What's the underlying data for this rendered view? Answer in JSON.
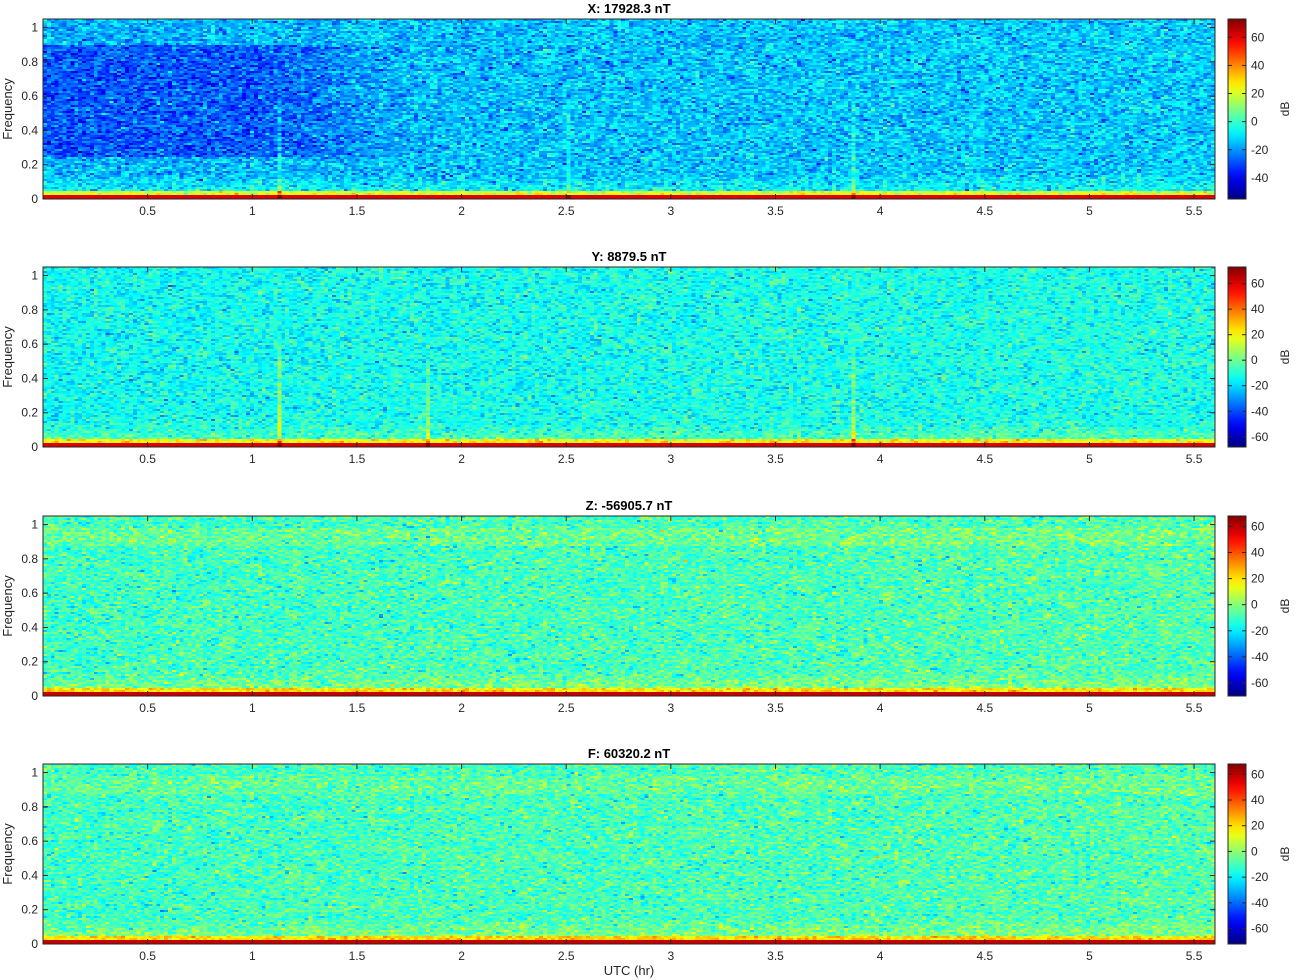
{
  "chart_data": [
    {
      "type": "heatmap",
      "title": "X: 17928.3 nT",
      "ylabel": "Frequency",
      "xlabel": "",
      "colorbar_label": "dB",
      "xlim": [
        0,
        5.6
      ],
      "ylim": [
        0,
        1.05
      ],
      "xticks": [
        "0.5",
        "1",
        "1.5",
        "2",
        "2.5",
        "3",
        "3.5",
        "4",
        "4.5",
        "5",
        "5.5"
      ],
      "xtick_values": [
        0.5,
        1,
        1.5,
        2,
        2.5,
        3,
        3.5,
        4,
        4.5,
        5,
        5.5
      ],
      "yticks": [
        "0",
        "0.2",
        "0.4",
        "0.6",
        "0.8",
        "1"
      ],
      "ytick_values": [
        0,
        0.2,
        0.4,
        0.6,
        0.8,
        1
      ],
      "clim": [
        -55,
        73
      ],
      "cticks": [
        "-40",
        "-20",
        "0",
        "20",
        "40",
        "60"
      ],
      "ctick_values": [
        -40,
        -20,
        0,
        20,
        40,
        60
      ],
      "colormap": "jet",
      "base_level_db": -16,
      "noise_db": 7,
      "low_frequency_band_db": 60,
      "dark_region": {
        "x_range": [
          0,
          1.8
        ],
        "f_range": [
          0.25,
          0.9
        ],
        "delta_db": -12
      },
      "vertical_streaks": [
        {
          "x": 1.12,
          "delta_db": 14
        },
        {
          "x": 2.5,
          "delta_db": 5
        },
        {
          "x": 3.87,
          "delta_db": 8
        }
      ]
    },
    {
      "type": "heatmap",
      "title": "Y: 8879.5 nT",
      "ylabel": "Frequency",
      "xlabel": "",
      "colorbar_label": "dB",
      "xlim": [
        0,
        5.6
      ],
      "ylim": [
        0,
        1.05
      ],
      "xticks": [
        "0.5",
        "1",
        "1.5",
        "2",
        "2.5",
        "3",
        "3.5",
        "4",
        "4.5",
        "5",
        "5.5"
      ],
      "xtick_values": [
        0.5,
        1,
        1.5,
        2,
        2.5,
        3,
        3.5,
        4,
        4.5,
        5,
        5.5
      ],
      "yticks": [
        "0",
        "0.2",
        "0.4",
        "0.6",
        "0.8",
        "1"
      ],
      "ytick_values": [
        0,
        0.2,
        0.4,
        0.6,
        0.8,
        1
      ],
      "clim": [
        -68,
        73
      ],
      "cticks": [
        "-60",
        "-40",
        "-20",
        "0",
        "20",
        "40",
        "60"
      ],
      "ctick_values": [
        -60,
        -40,
        -20,
        0,
        20,
        40,
        60
      ],
      "colormap": "jet",
      "base_level_db": -14,
      "noise_db": 7,
      "low_frequency_band_db": 60,
      "vertical_streaks": [
        {
          "x": 1.12,
          "delta_db": 22
        },
        {
          "x": 1.82,
          "delta_db": 16
        },
        {
          "x": 3.87,
          "delta_db": 18
        }
      ]
    },
    {
      "type": "heatmap",
      "title": "Z: -56905.7 nT",
      "ylabel": "Frequency",
      "xlabel": "",
      "colorbar_label": "dB",
      "xlim": [
        0,
        5.6
      ],
      "ylim": [
        0,
        1.05
      ],
      "xticks": [
        "0.5",
        "1",
        "1.5",
        "2",
        "2.5",
        "3",
        "3.5",
        "4",
        "4.5",
        "5",
        "5.5"
      ],
      "xtick_values": [
        0.5,
        1,
        1.5,
        2,
        2.5,
        3,
        3.5,
        4,
        4.5,
        5,
        5.5
      ],
      "yticks": [
        "0",
        "0.2",
        "0.4",
        "0.6",
        "0.8",
        "1"
      ],
      "ytick_values": [
        0,
        0.2,
        0.4,
        0.6,
        0.8,
        1
      ],
      "clim": [
        -70,
        68
      ],
      "cticks": [
        "-60",
        "-40",
        "-20",
        "0",
        "20",
        "40",
        "60"
      ],
      "ctick_values": [
        -60,
        -40,
        -20,
        0,
        20,
        40,
        60
      ],
      "colormap": "jet",
      "base_level_db": -10,
      "noise_db": 7,
      "low_frequency_band_db": 58,
      "high_frequency_band": {
        "f_range": [
          0.88,
          0.98
        ],
        "delta_db": 5
      },
      "vertical_streaks": []
    },
    {
      "type": "heatmap",
      "title": "F: 60320.2 nT",
      "ylabel": "Frequency",
      "xlabel": "UTC (hr)",
      "colorbar_label": "dB",
      "xlim": [
        0,
        5.6
      ],
      "ylim": [
        0,
        1.05
      ],
      "xticks": [
        "0.5",
        "1",
        "1.5",
        "2",
        "2.5",
        "3",
        "3.5",
        "4",
        "4.5",
        "5",
        "5.5"
      ],
      "xtick_values": [
        0.5,
        1,
        1.5,
        2,
        2.5,
        3,
        3.5,
        4,
        4.5,
        5,
        5.5
      ],
      "yticks": [
        "0",
        "0.2",
        "0.4",
        "0.6",
        "0.8",
        "1"
      ],
      "ytick_values": [
        0,
        0.2,
        0.4,
        0.6,
        0.8,
        1
      ],
      "clim": [
        -72,
        68
      ],
      "cticks": [
        "-60",
        "-40",
        "-20",
        "0",
        "20",
        "40",
        "60"
      ],
      "ctick_values": [
        -60,
        -40,
        -20,
        0,
        20,
        40,
        60
      ],
      "colormap": "jet",
      "base_level_db": -11,
      "noise_db": 7,
      "low_frequency_band_db": 58,
      "high_frequency_band": {
        "f_range": [
          0.88,
          0.98
        ],
        "delta_db": 4
      },
      "vertical_streaks": []
    }
  ]
}
